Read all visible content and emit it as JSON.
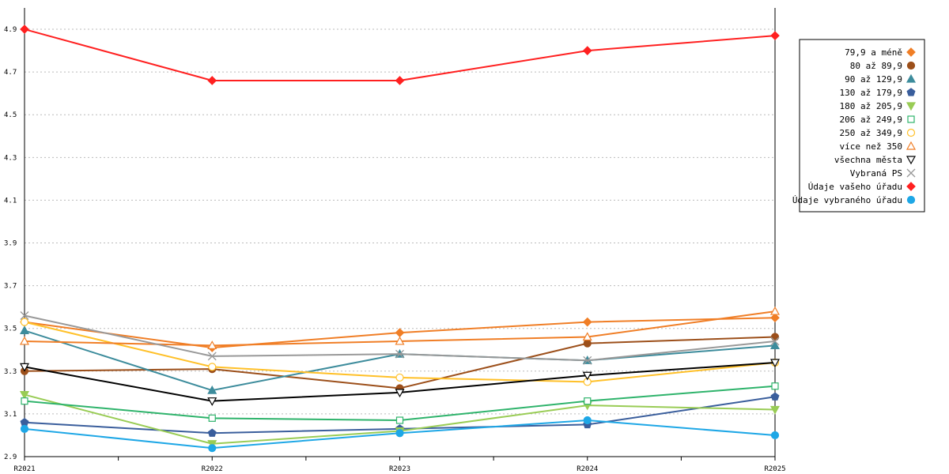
{
  "chart_data": {
    "type": "line",
    "title": "",
    "xlabel": "",
    "ylabel": "",
    "categories": [
      "R2021",
      "R2022",
      "R2023",
      "R2024",
      "R2025"
    ],
    "ylim": [
      2.9,
      5.0
    ],
    "yticks": [
      "2.9",
      "3.1",
      "3.3",
      "3.5",
      "3.7",
      "3.9",
      "4.1",
      "4.3",
      "4.5",
      "4.7",
      "4.9"
    ],
    "grid": true,
    "legend_position": "right",
    "series": [
      {
        "name": "79,9 a méně",
        "color": "#f07e26",
        "marker": "diamond",
        "filled": true,
        "values": [
          3.53,
          3.41,
          3.48,
          3.53,
          3.55
        ]
      },
      {
        "name": "80 až 89,9",
        "color": "#9c4f1a",
        "marker": "circle",
        "filled": true,
        "values": [
          3.3,
          3.31,
          3.22,
          3.43,
          3.46
        ]
      },
      {
        "name": "90 až 129,9",
        "color": "#3d8c9c",
        "marker": "triangle-up",
        "filled": true,
        "values": [
          3.49,
          3.21,
          3.38,
          3.35,
          3.42
        ]
      },
      {
        "name": "130 až 179,9",
        "color": "#3a5e9c",
        "marker": "pentagon",
        "filled": true,
        "values": [
          3.06,
          3.01,
          3.03,
          3.05,
          3.18
        ]
      },
      {
        "name": "180 až 205,9",
        "color": "#99cc55",
        "marker": "triangle-down",
        "filled": true,
        "values": [
          3.19,
          2.96,
          3.02,
          3.14,
          3.12
        ]
      },
      {
        "name": "206 až 249,9",
        "color": "#2eb36b",
        "marker": "square",
        "filled": false,
        "values": [
          3.16,
          3.08,
          3.07,
          3.16,
          3.23
        ]
      },
      {
        "name": "250 až 349,9",
        "color": "#ffc028",
        "marker": "circle",
        "filled": false,
        "values": [
          3.53,
          3.32,
          3.27,
          3.25,
          3.34
        ]
      },
      {
        "name": "více než 350",
        "color": "#f07e26",
        "marker": "triangle-up",
        "filled": false,
        "values": [
          3.44,
          3.42,
          3.44,
          3.46,
          3.58
        ]
      },
      {
        "name": "všechna města",
        "color": "#000000",
        "marker": "triangle-down",
        "filled": false,
        "values": [
          3.32,
          3.16,
          3.2,
          3.28,
          3.34
        ]
      },
      {
        "name": "Vybraná PS",
        "color": "#999999",
        "marker": "x",
        "filled": false,
        "values": [
          3.56,
          3.37,
          3.38,
          3.35,
          3.44
        ]
      },
      {
        "name": "Údaje vašeho úřadu",
        "color": "#ff2020",
        "marker": "diamond",
        "filled": true,
        "values": [
          4.9,
          4.66,
          4.66,
          4.8,
          4.87
        ]
      },
      {
        "name": "Údaje vybraného úřadu",
        "color": "#1ea7e6",
        "marker": "circle",
        "filled": true,
        "values": [
          3.03,
          2.94,
          3.01,
          3.07,
          3.0
        ]
      }
    ]
  }
}
